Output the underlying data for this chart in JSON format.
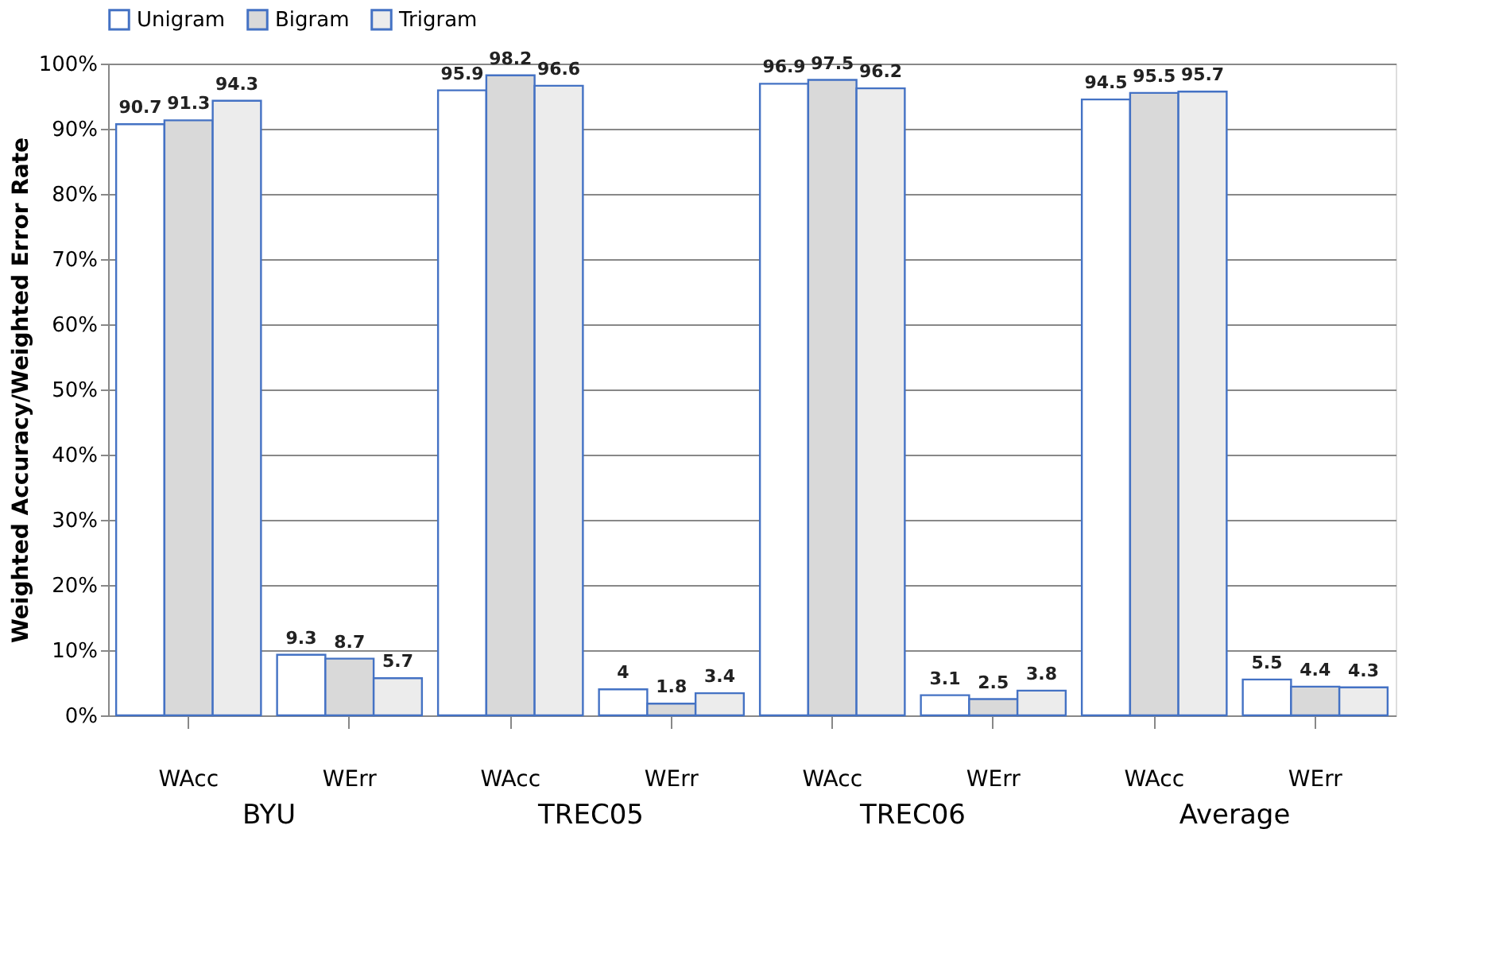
{
  "chart_data": {
    "type": "bar",
    "ylabel": "Weighted Accuracy/Weighted Error Rate",
    "categories": [
      "WAcc",
      "WErr",
      "WAcc",
      "WErr",
      "WAcc",
      "WErr",
      "WAcc",
      "WErr"
    ],
    "annotations": [
      "BYU",
      "TREC05",
      "TREC06",
      "Average"
    ],
    "series": [
      {
        "name": "Unigram",
        "color": "#ffffff",
        "values": [
          90.7,
          9.3,
          95.9,
          4,
          96.9,
          3.1,
          94.5,
          5.5
        ]
      },
      {
        "name": "Bigram",
        "color": "#d9d9d9",
        "values": [
          91.3,
          8.7,
          98.2,
          1.8,
          97.5,
          2.5,
          95.5,
          4.4
        ]
      },
      {
        "name": "Trigram",
        "color": "#ececec",
        "values": [
          94.3,
          5.7,
          96.6,
          3.4,
          96.2,
          3.8,
          95.7,
          4.3
        ]
      }
    ],
    "ylim": [
      0,
      100
    ],
    "yticks": [
      {
        "value": 0,
        "label": "0%"
      },
      {
        "value": 10,
        "label": "10%"
      },
      {
        "value": 20,
        "label": "20%"
      },
      {
        "value": 30,
        "label": "30%"
      },
      {
        "value": 40,
        "label": "40%"
      },
      {
        "value": 50,
        "label": "50%"
      },
      {
        "value": 60,
        "label": "60%"
      },
      {
        "value": 70,
        "label": "70%"
      },
      {
        "value": 80,
        "label": "80%"
      },
      {
        "value": 90,
        "label": "90%"
      },
      {
        "value": 100,
        "label": "100%"
      }
    ],
    "grid": "y",
    "legend": "top left",
    "data_labels": true
  }
}
